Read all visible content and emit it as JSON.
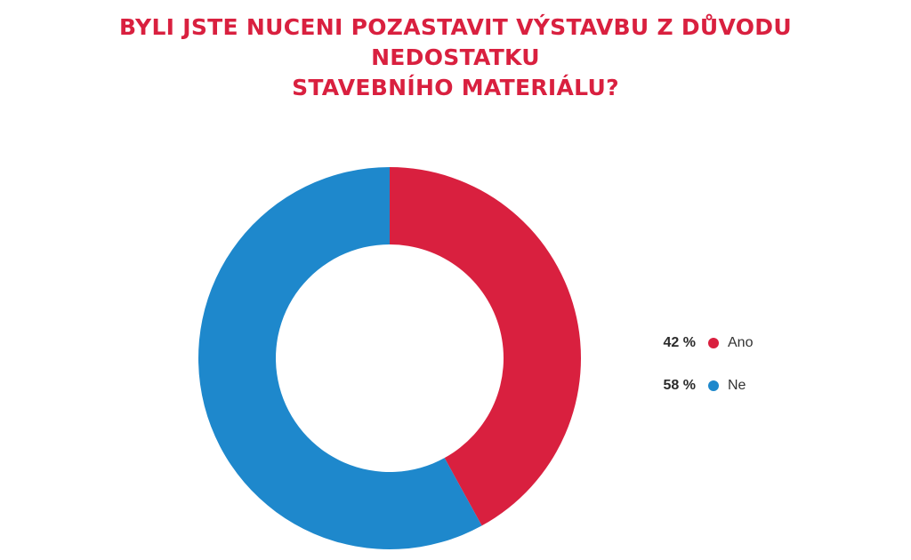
{
  "title": {
    "line1": "BYLI JSTE NUCENI POZASTAVIT VÝSTAVBU Z DŮVODU NEDOSTATKU",
    "line2": "STAVEBNÍHO MATERIÁLU?"
  },
  "colors": {
    "title": "#d9203f",
    "ano": "#d9203f",
    "ne": "#1e88cc"
  },
  "legend": [
    {
      "pct_text": "42 %",
      "label": "Ano"
    },
    {
      "pct_text": "58 %",
      "label": "Ne"
    }
  ],
  "chart_data": {
    "type": "pie",
    "style": "donut",
    "title": "BYLI JSTE NUCENI POZASTAVIT VÝSTAVBU Z DŮVODU NEDOSTATKU STAVEBNÍHO MATERIÁLU?",
    "categories": [
      "Ano",
      "Ne"
    ],
    "values": [
      42,
      58
    ],
    "unit": "%",
    "colors": [
      "#d9203f",
      "#1e88cc"
    ],
    "start": "top",
    "direction": "clockwise",
    "legend_position": "right"
  }
}
